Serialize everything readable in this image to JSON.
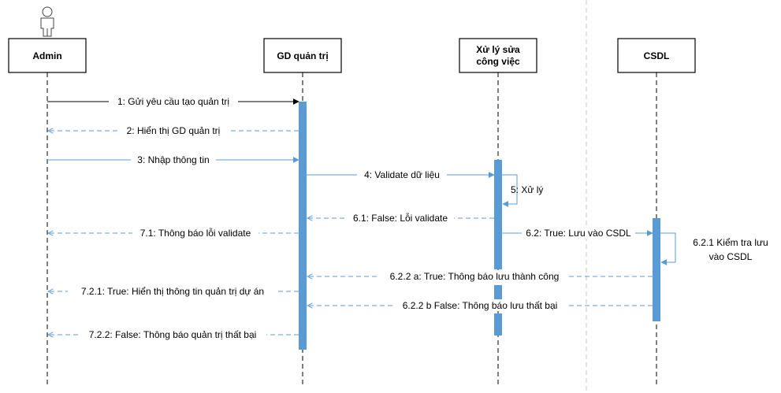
{
  "participants": [
    {
      "id": "admin",
      "label_lines": [
        "Admin"
      ]
    },
    {
      "id": "gd",
      "label_lines": [
        "GD quản trị"
      ]
    },
    {
      "id": "xuly",
      "label_lines": [
        "Xử lý sửa",
        "công việc"
      ]
    },
    {
      "id": "csdl",
      "label_lines": [
        "CSDL"
      ]
    }
  ],
  "messages": [
    {
      "id": "m1",
      "label": "1: Gửi yêu cầu tạo quản trị",
      "from": "admin",
      "to": "gd",
      "style": "solid-black"
    },
    {
      "id": "m2",
      "label": "2: Hiển thị GD quản trị",
      "from": "gd",
      "to": "admin",
      "style": "dashed-blue"
    },
    {
      "id": "m3",
      "label": "3: Nhập thông tin",
      "from": "admin",
      "to": "gd",
      "style": "solid-blue"
    },
    {
      "id": "m4",
      "label": "4: Validate dữ liệu",
      "from": "gd",
      "to": "xuly",
      "style": "solid-blue"
    },
    {
      "id": "m5",
      "label": "5: Xử lý",
      "from": "xuly",
      "to": "xuly",
      "style": "solid-blue"
    },
    {
      "id": "m61",
      "label": "6.1: False: Lỗi validate",
      "from": "xuly",
      "to": "gd",
      "style": "dashed-blue"
    },
    {
      "id": "m62",
      "label": "6.2: True: Lưu vào CSDL",
      "from": "xuly",
      "to": "csdl",
      "style": "solid-blue"
    },
    {
      "id": "m621",
      "label_lines": [
        "6.2.1  Kiểm tra lưu",
        "vào CSDL"
      ],
      "from": "csdl",
      "to": "csdl",
      "style": "solid-blue"
    },
    {
      "id": "m71",
      "label": "7.1: Thông báo lỗi validate",
      "from": "gd",
      "to": "admin",
      "style": "dashed-blue"
    },
    {
      "id": "m622a",
      "label": "6.2.2 a:  True: Thông báo lưu thành công",
      "from": "csdl",
      "to": "gd",
      "style": "dashed-blue"
    },
    {
      "id": "m721",
      "label": "7.2.1: True: Hiển thị thông tin quản trị dự án",
      "from": "gd",
      "to": "admin",
      "style": "dashed-blue"
    },
    {
      "id": "m622b",
      "label": "6.2.2 b False: Thông báo lưu thất bại",
      "from": "csdl",
      "to": "gd",
      "style": "dashed-blue"
    },
    {
      "id": "m722",
      "label": "7.2.2: False: Thông báo quản trị thất bại",
      "from": "gd",
      "to": "admin",
      "style": "dashed-blue"
    }
  ],
  "colors": {
    "activation": "#5b9bd5",
    "arrow_blue": "#5b9bd5",
    "arrow_black": "#000000"
  },
  "icons": [
    "actor-icon"
  ]
}
